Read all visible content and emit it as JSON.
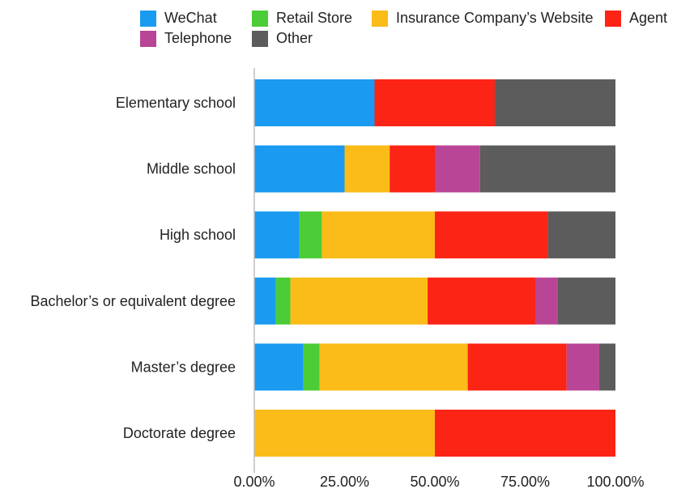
{
  "chart_data": {
    "type": "bar",
    "orientation": "horizontal",
    "stacked": true,
    "normalized": true,
    "title": "",
    "xlabel": "",
    "ylabel": "",
    "xlim": [
      0,
      1
    ],
    "x_ticks": [
      "0.00%",
      "25.00%",
      "50.00%",
      "75.00%",
      "100.00%"
    ],
    "grid": false,
    "legend_position": "top",
    "categories": [
      "Elementary school",
      "Middle school",
      "High school",
      "Bachelor’s or equivalent degree",
      "Master’s degree",
      "Doctorate degree"
    ],
    "series": [
      {
        "name": "WeChat",
        "color": "#1a9af0",
        "values": [
          0.333,
          0.25,
          0.125,
          0.06,
          0.136,
          0.0
        ]
      },
      {
        "name": "Retail Store",
        "color": "#4ccc36",
        "values": [
          0.0,
          0.0,
          0.062,
          0.04,
          0.045,
          0.0
        ]
      },
      {
        "name": "Insurance Company’s Website",
        "color": "#fbbb18",
        "values": [
          0.0,
          0.125,
          0.313,
          0.38,
          0.41,
          0.5
        ]
      },
      {
        "name": "Agent",
        "color": "#fb2415",
        "values": [
          0.333,
          0.125,
          0.313,
          0.3,
          0.274,
          0.5
        ]
      },
      {
        "name": "Telephone",
        "color": "#b94596",
        "values": [
          0.0,
          0.125,
          0.0,
          0.06,
          0.09,
          0.0
        ]
      },
      {
        "name": "Other",
        "color": "#5c5c5c",
        "values": [
          0.334,
          0.375,
          0.187,
          0.16,
          0.045,
          0.0
        ]
      }
    ]
  }
}
